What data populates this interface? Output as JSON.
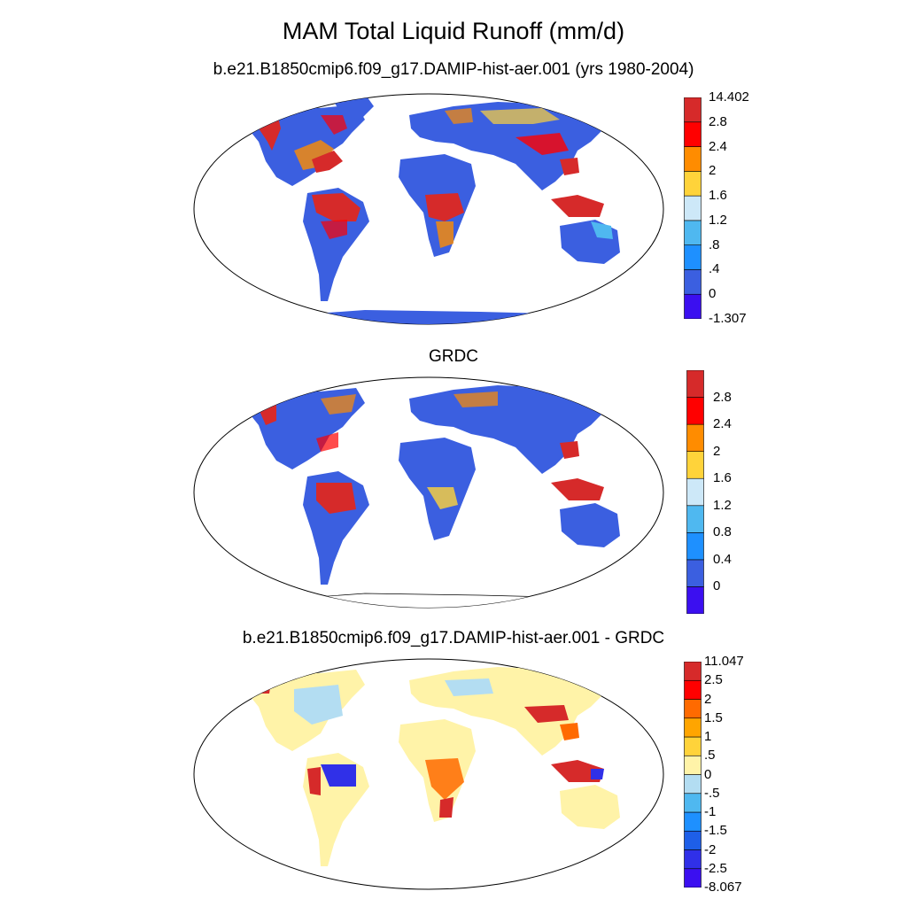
{
  "title": "MAM Total Liquid Runoff (mm/d)",
  "panels": [
    {
      "name": "model",
      "subtitle": "b.e21.B1850cmip6.f09_g17.DAMIP-hist-aer.001 (yrs 1980-2004)",
      "colorbar": {
        "colors": [
          "#3B0FF0",
          "#3B5FE0",
          "#1E90FF",
          "#4FB8F0",
          "#CDE8F8",
          "#FFD33A",
          "#FF8C00",
          "#FF0000",
          "#D62A2A"
        ],
        "labels": [
          "-1.307",
          "0",
          ".4",
          ".8",
          "1.2",
          "1.6",
          "2",
          "2.4",
          "2.8",
          "14.402"
        ]
      }
    },
    {
      "name": "obs",
      "subtitle": "GRDC",
      "colorbar": {
        "colors": [
          "#3B0FF0",
          "#3B5FE0",
          "#1E90FF",
          "#4FB8F0",
          "#CDE8F8",
          "#FFD33A",
          "#FF8C00",
          "#FF0000",
          "#D62A2A"
        ],
        "labels": [
          "0",
          "0.4",
          "0.8",
          "1.2",
          "1.6",
          "2",
          "2.4",
          "2.8"
        ]
      }
    },
    {
      "name": "diff",
      "subtitle": "b.e21.B1850cmip6.f09_g17.DAMIP-hist-aer.001 - GRDC",
      "colorbar": {
        "colors": [
          "#3B0FF0",
          "#3030E8",
          "#1E5FE8",
          "#1E90FF",
          "#4FB8F0",
          "#B3DDF2",
          "#FFF3A8",
          "#FFD33A",
          "#FFA500",
          "#FF6A00",
          "#FF0000",
          "#D62A2A"
        ],
        "labels": [
          "-8.067",
          "-2.5",
          "-2",
          "-1.5",
          "-1",
          "-.5",
          "0",
          ".5",
          "1",
          "1.5",
          "2",
          "2.5",
          "11.047"
        ]
      }
    }
  ]
}
